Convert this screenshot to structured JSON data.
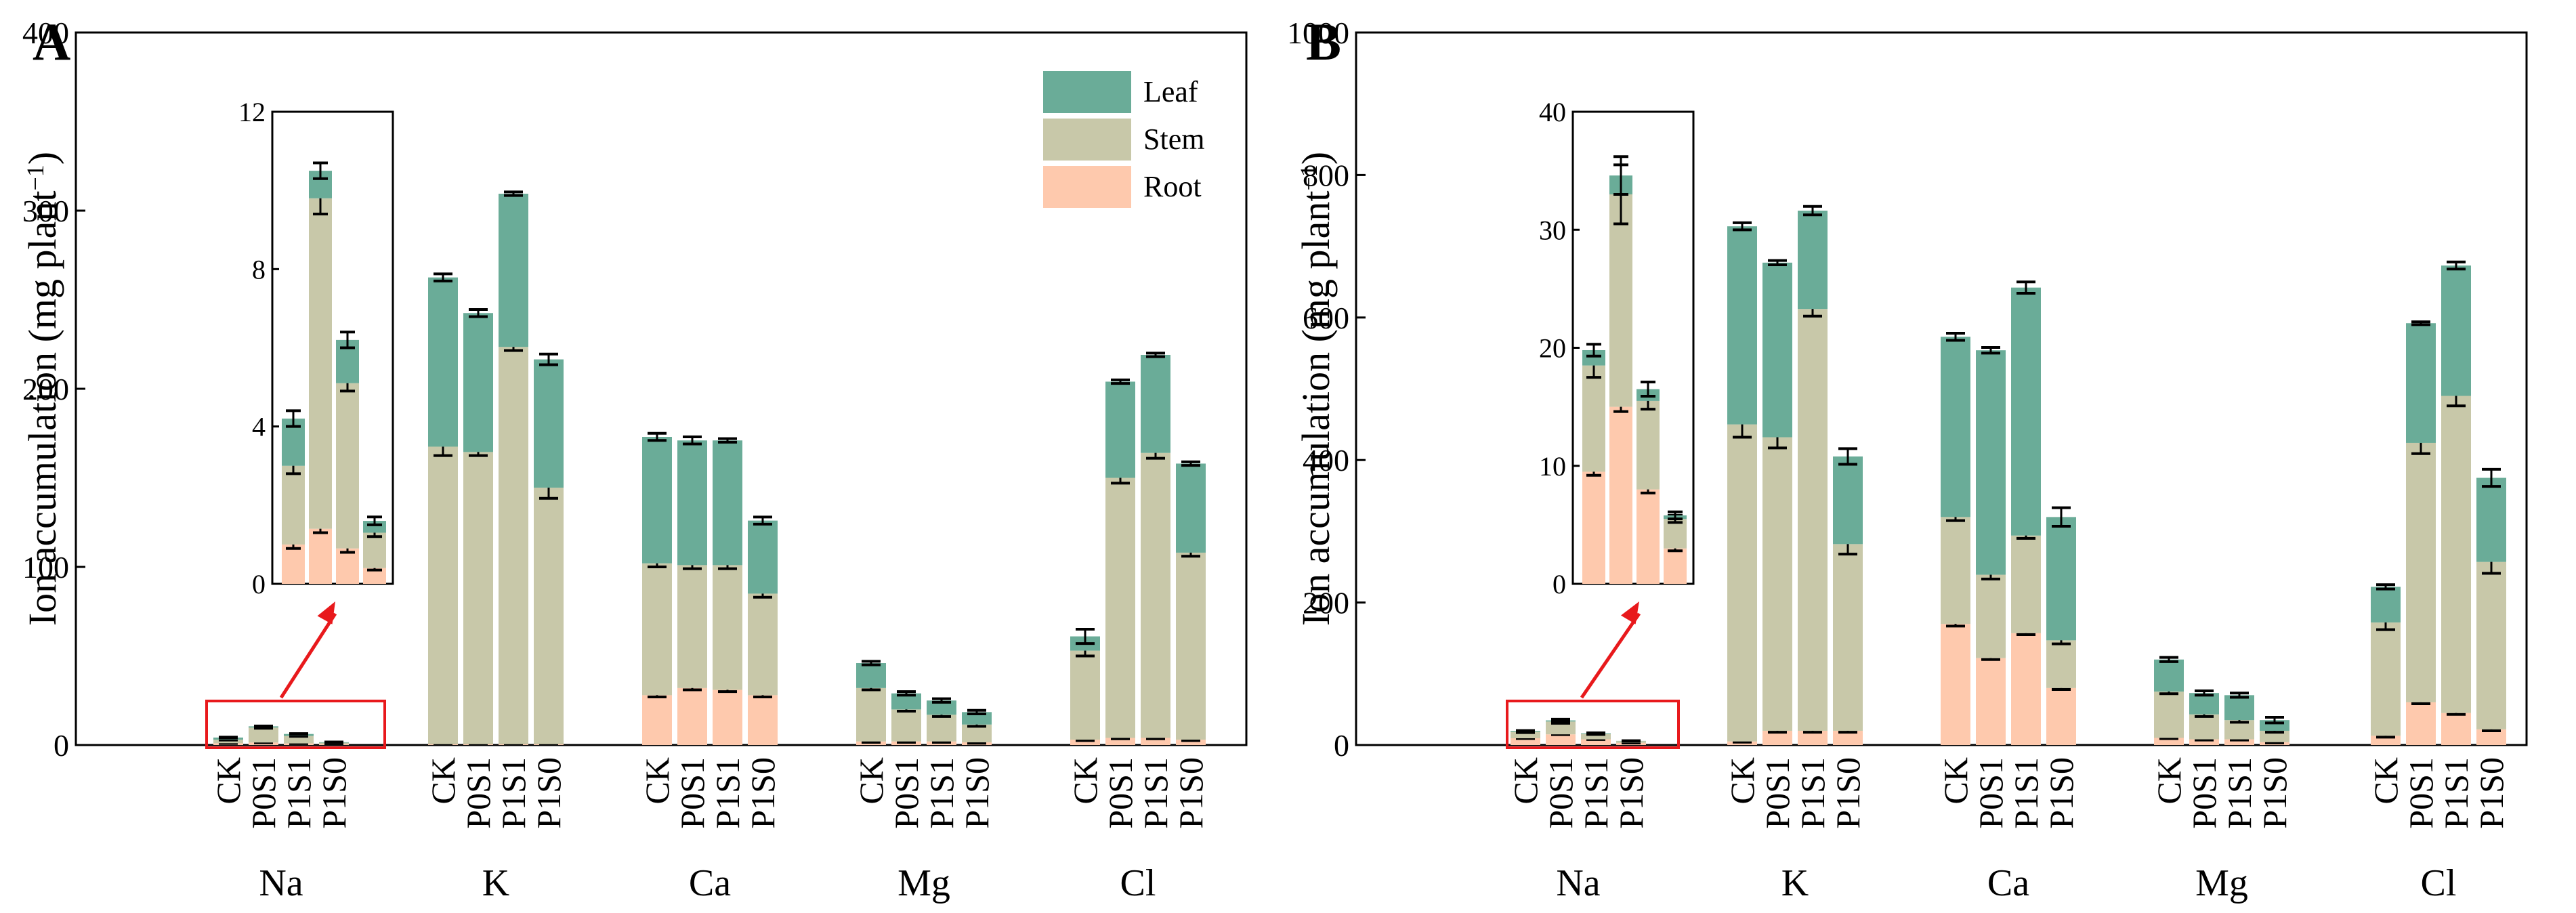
{
  "chart_data": [
    {
      "type": "bar",
      "stacked": true,
      "panel": "A",
      "ylabel": "Ion accumulation (mg plant",
      "ylabel_sup": "−1",
      "ylabel_close": ")",
      "ylim": [
        0,
        400
      ],
      "yticks": [
        "0",
        "100",
        "200",
        "300",
        "400"
      ],
      "treatments": [
        "CK",
        "P0S1",
        "P1S1",
        "P1S0"
      ],
      "ions": [
        "Na",
        "K",
        "Ca",
        "Mg",
        "Cl"
      ],
      "stack_order": [
        "Root",
        "Stem",
        "Leaf"
      ],
      "legend": [
        {
          "name": "Leaf",
          "color": "#6aac98"
        },
        {
          "name": "Stem",
          "color": "#c8c8a9"
        },
        {
          "name": "Root",
          "color": "#fec9ad"
        }
      ],
      "groups": [
        {
          "ion": "Na",
          "bars": [
            {
              "root": 1.0,
              "stem": 2.0,
              "leaf": 1.2,
              "err": [
                0.1,
                0.2,
                0.2
              ]
            },
            {
              "root": 1.4,
              "stem": 8.4,
              "leaf": 0.7,
              "err": [
                0.1,
                0.4,
                0.2
              ]
            },
            {
              "root": 0.9,
              "stem": 4.2,
              "leaf": 1.1,
              "err": [
                0.1,
                0.2,
                0.2
              ]
            },
            {
              "root": 0.4,
              "stem": 0.9,
              "leaf": 0.3,
              "err": [
                0.05,
                0.1,
                0.1
              ]
            }
          ]
        },
        {
          "ion": "K",
          "bars": [
            {
              "root": 0.5,
              "stem": 167,
              "leaf": 95,
              "err": [
                0.3,
                5,
                2
              ]
            },
            {
              "root": 0.5,
              "stem": 164,
              "leaf": 78,
              "err": [
                0.3,
                2,
                2
              ]
            },
            {
              "root": 0.5,
              "stem": 223,
              "leaf": 86,
              "err": [
                0.3,
                2,
                1
              ]
            },
            {
              "root": 0.5,
              "stem": 144,
              "leaf": 72,
              "err": [
                0.3,
                6,
                3
              ]
            }
          ]
        },
        {
          "ion": "Ca",
          "bars": [
            {
              "root": 28,
              "stem": 74,
              "leaf": 71,
              "err": [
                1,
                2,
                2
              ]
            },
            {
              "root": 32,
              "stem": 69,
              "leaf": 70,
              "err": [
                1,
                2,
                2
              ]
            },
            {
              "root": 31,
              "stem": 70,
              "leaf": 70,
              "err": [
                1,
                2,
                1
              ]
            },
            {
              "root": 28,
              "stem": 57,
              "leaf": 41,
              "err": [
                1,
                2,
                2
              ]
            }
          ]
        },
        {
          "ion": "Mg",
          "bars": [
            {
              "root": 2,
              "stem": 30,
              "leaf": 14,
              "err": [
                0.5,
                1,
                1
              ]
            },
            {
              "root": 2,
              "stem": 18,
              "leaf": 9,
              "err": [
                0.5,
                1,
                1
              ]
            },
            {
              "root": 2,
              "stem": 15,
              "leaf": 8,
              "err": [
                0.5,
                1,
                1
              ]
            },
            {
              "root": 1.5,
              "stem": 10,
              "leaf": 7,
              "err": [
                0.5,
                1,
                1
              ]
            }
          ]
        },
        {
          "ion": "Cl",
          "bars": [
            {
              "root": 3,
              "stem": 50,
              "leaf": 8,
              "err": [
                0.5,
                3,
                4
              ]
            },
            {
              "root": 4,
              "stem": 146,
              "leaf": 54,
              "err": [
                0.5,
                3,
                1
              ]
            },
            {
              "root": 4,
              "stem": 160,
              "leaf": 55,
              "err": [
                0.5,
                3,
                1
              ]
            },
            {
              "root": 3,
              "stem": 105,
              "leaf": 50,
              "err": [
                0.5,
                2,
                1
              ]
            }
          ]
        }
      ],
      "inset": {
        "ion": "Na",
        "ylim": [
          0,
          12
        ],
        "yticks": [
          "0",
          "4",
          "8",
          "12"
        ]
      }
    },
    {
      "type": "bar",
      "stacked": true,
      "panel": "B",
      "ylabel": "Ion accumulation (mg plant",
      "ylabel_sup": "−1",
      "ylabel_close": ")",
      "ylim": [
        0,
        1000
      ],
      "yticks": [
        "0",
        "200",
        "400",
        "600",
        "800",
        "1000"
      ],
      "treatments": [
        "CK",
        "P0S1",
        "P1S1",
        "P1S0"
      ],
      "ions": [
        "Na",
        "K",
        "Ca",
        "Mg",
        "Cl"
      ],
      "stack_order": [
        "Root",
        "Stem",
        "Leaf"
      ],
      "groups": [
        {
          "ion": "Na",
          "bars": [
            {
              "root": 9.5,
              "stem": 9.0,
              "leaf": 1.3,
              "err": [
                0.3,
                1.0,
                0.5
              ]
            },
            {
              "root": 15.0,
              "stem": 18.0,
              "leaf": 1.6,
              "err": [
                0.4,
                2.5,
                1.6
              ]
            },
            {
              "root": 8.0,
              "stem": 7.5,
              "leaf": 1.0,
              "err": [
                0.3,
                0.7,
                0.6
              ]
            },
            {
              "root": 3.0,
              "stem": 2.5,
              "leaf": 0.3,
              "err": [
                0.2,
                0.3,
                0.3
              ]
            }
          ]
        },
        {
          "ion": "K",
          "bars": [
            {
              "root": 5,
              "stem": 445,
              "leaf": 278,
              "err": [
                1,
                18,
                5
              ]
            },
            {
              "root": 20,
              "stem": 412,
              "leaf": 245,
              "err": [
                2,
                15,
                3
              ]
            },
            {
              "root": 20,
              "stem": 592,
              "leaf": 138,
              "err": [
                2,
                10,
                6
              ]
            },
            {
              "root": 20,
              "stem": 262,
              "leaf": 123,
              "err": [
                2,
                14,
                11
              ]
            }
          ]
        },
        {
          "ion": "Ca",
          "bars": [
            {
              "root": 170,
              "stem": 150,
              "leaf": 253,
              "err": [
                3,
                5,
                5
              ]
            },
            {
              "root": 122,
              "stem": 117,
              "leaf": 315,
              "err": [
                2,
                6,
                4
              ]
            },
            {
              "root": 157,
              "stem": 137,
              "leaf": 348,
              "err": [
                2,
                4,
                8
              ]
            },
            {
              "root": 80,
              "stem": 67,
              "leaf": 173,
              "err": [
                2,
                5,
                13
              ]
            }
          ]
        },
        {
          "ion": "Mg",
          "bars": [
            {
              "root": 10,
              "stem": 65,
              "leaf": 45,
              "err": [
                1,
                3,
                3
              ]
            },
            {
              "root": 8,
              "stem": 35,
              "leaf": 30,
              "err": [
                1,
                3,
                3
              ]
            },
            {
              "root": 8,
              "stem": 27,
              "leaf": 35,
              "err": [
                1,
                3,
                3
              ]
            },
            {
              "root": 4,
              "stem": 16,
              "leaf": 15,
              "err": [
                1,
                2,
                4
              ]
            }
          ]
        },
        {
          "ion": "Cl",
          "bars": [
            {
              "root": 13,
              "stem": 159,
              "leaf": 50,
              "err": [
                2,
                10,
                3
              ]
            },
            {
              "root": 60,
              "stem": 364,
              "leaf": 168,
              "err": [
                2,
                15,
                2
              ]
            },
            {
              "root": 45,
              "stem": 445,
              "leaf": 183,
              "err": [
                2,
                14,
                5
              ]
            },
            {
              "root": 22,
              "stem": 235,
              "leaf": 118,
              "err": [
                2,
                16,
                12
              ]
            }
          ]
        }
      ],
      "inset": {
        "ion": "Na",
        "ylim": [
          0,
          40
        ],
        "yticks": [
          "0",
          "10",
          "20",
          "30",
          "40"
        ]
      }
    }
  ]
}
